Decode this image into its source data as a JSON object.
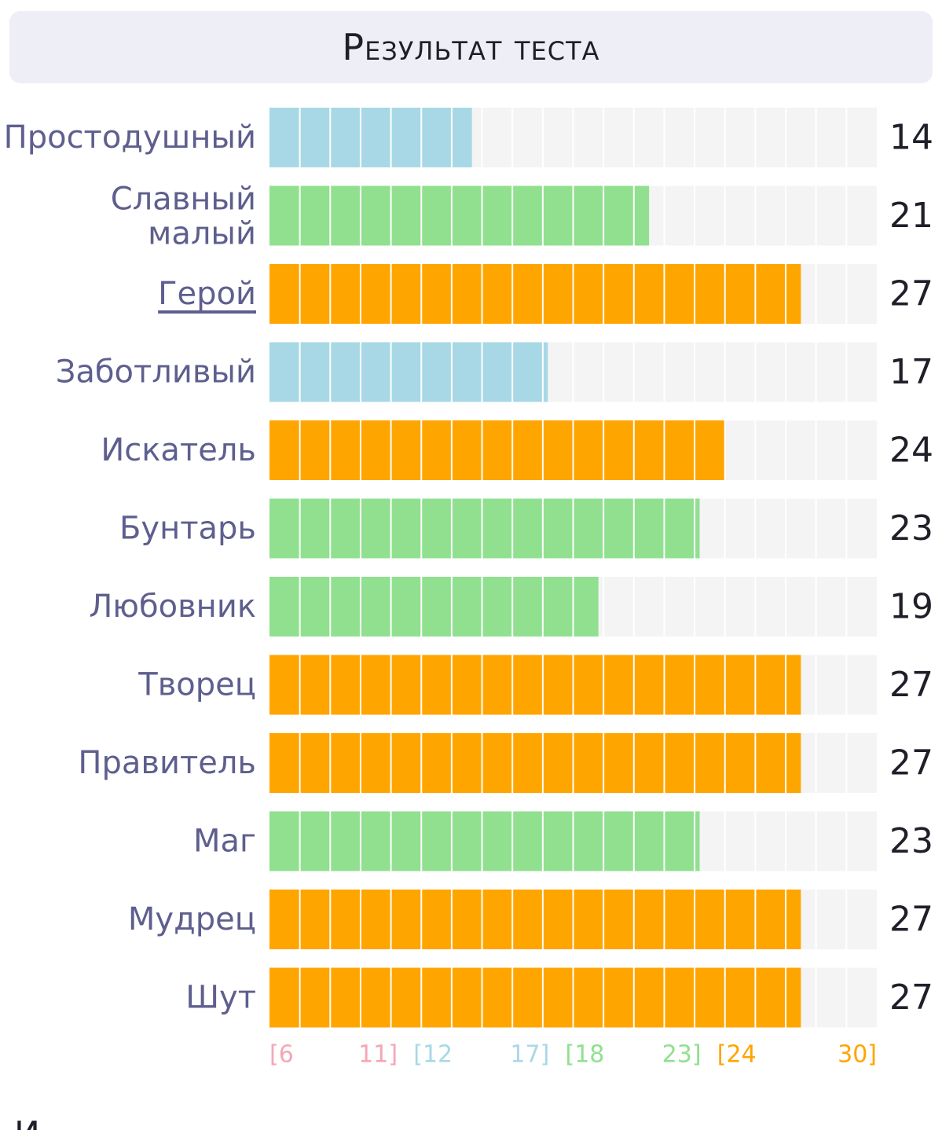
{
  "header": {
    "title": "Результат теста"
  },
  "chart_data": {
    "type": "bar",
    "orientation": "horizontal",
    "categories": [
      "Простодушный",
      "Славный малый",
      "Герой",
      "Заботливый",
      "Искатель",
      "Бунтарь",
      "Любовник",
      "Творец",
      "Правитель",
      "Маг",
      "Мудрец",
      "Шут"
    ],
    "values": [
      14,
      21,
      27,
      17,
      24,
      23,
      19,
      27,
      27,
      23,
      27,
      27
    ],
    "xlim": [
      6,
      30
    ],
    "linked_categories": [
      "Герой"
    ],
    "ranges": [
      {
        "label_start": "[6",
        "label_end": "11]",
        "min": 6,
        "max": 11,
        "color": "#f4a6b5"
      },
      {
        "label_start": "[12",
        "label_end": "17]",
        "min": 12,
        "max": 17,
        "color": "#a8d8e6"
      },
      {
        "label_start": "[18",
        "label_end": "23]",
        "min": 18,
        "max": 23,
        "color": "#90e090"
      },
      {
        "label_start": "[24",
        "label_end": "30]",
        "min": 24,
        "max": 30,
        "color": "#ffa500"
      }
    ],
    "track_color": "#f4f4f4",
    "grid": true
  },
  "footer": {
    "partial_text": "И"
  }
}
